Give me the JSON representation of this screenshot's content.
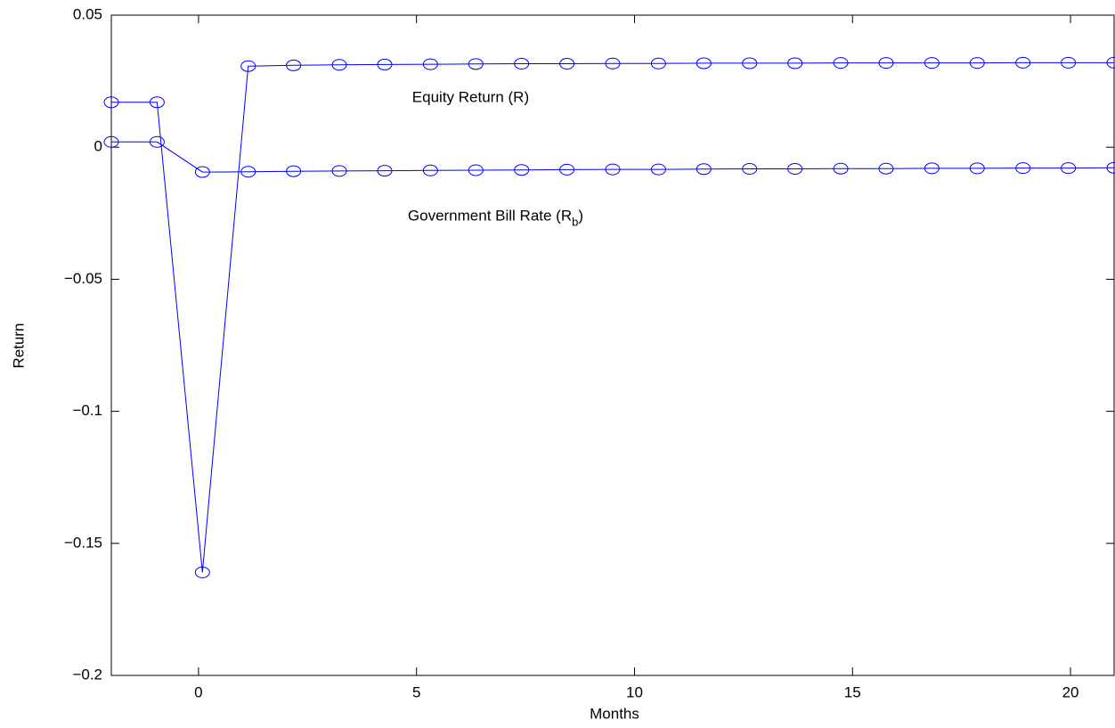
{
  "chart_data": {
    "type": "line",
    "xlabel": "Months",
    "ylabel": "Return",
    "x": [
      -2,
      -0.95,
      0.09,
      1.14,
      2.18,
      3.23,
      4.27,
      5.32,
      6.36,
      7.41,
      8.45,
      9.5,
      10.55,
      11.59,
      12.64,
      13.68,
      14.73,
      15.77,
      16.82,
      17.86,
      18.91,
      19.95,
      21
    ],
    "series": [
      {
        "name": "Equity Return (R)",
        "color": "#0000ff",
        "values": [
          0.017,
          0.017,
          -0.161,
          0.0307,
          0.031,
          0.0312,
          0.0313,
          0.0314,
          0.0315,
          0.0316,
          0.0316,
          0.0317,
          0.0317,
          0.0318,
          0.0318,
          0.0318,
          0.0319,
          0.0319,
          0.0319,
          0.0319,
          0.032,
          0.032,
          0.032
        ]
      },
      {
        "name": "Government Bill Rate (Rb)",
        "color": "#0000ff",
        "values": [
          0.002,
          0.002,
          -0.0094,
          -0.0093,
          -0.0091,
          -0.009,
          -0.0089,
          -0.0088,
          -0.0087,
          -0.0086,
          -0.0085,
          -0.0084,
          -0.0084,
          -0.0083,
          -0.0082,
          -0.0082,
          -0.0081,
          -0.0081,
          -0.008,
          -0.008,
          -0.0079,
          -0.0079,
          -0.0078
        ]
      }
    ],
    "annotations": [
      {
        "parts": [
          "Equity Return (R)"
        ],
        "x": 4.9,
        "y": 0.0185
      },
      {
        "parts": [
          "Government Bill Rate (R",
          "b",
          ")"
        ],
        "x": 4.8,
        "y": -0.0265
      }
    ],
    "xlim": [
      -2,
      21
    ],
    "xticks": [
      0,
      5,
      10,
      15,
      20
    ],
    "ylim": [
      -0.2,
      0.05
    ],
    "yticks": [
      {
        "value": -0.2,
        "label": "−0.2"
      },
      {
        "value": -0.15,
        "label": "−0.15"
      },
      {
        "value": -0.1,
        "label": "−0.1"
      },
      {
        "value": -0.05,
        "label": "−0.05"
      },
      0,
      0.05
    ],
    "grid": false,
    "marker": "circle"
  }
}
